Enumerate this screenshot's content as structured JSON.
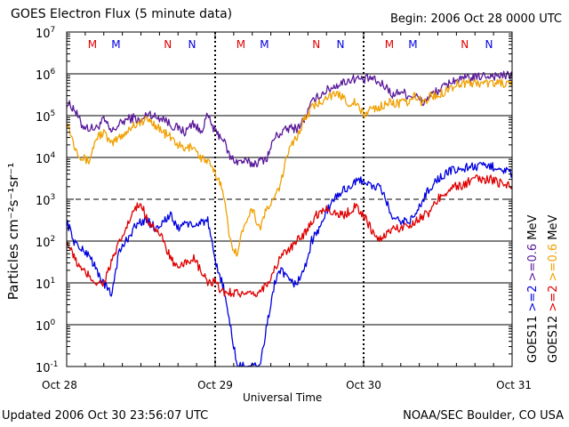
{
  "chart_data": {
    "type": "line",
    "title": "GOES Electron Flux (5 minute data)",
    "begin": "Begin: 2006 Oct 28 0000 UTC",
    "xlabel": "Universal Time",
    "ylabel": "Particles cm⁻²s⁻¹sr⁻¹",
    "yscale": "log",
    "ylim": [
      0.1,
      10000000
    ],
    "x_unit": "days since 2006 Oct 28 0000 UTC",
    "xlim": [
      0,
      3
    ],
    "x_ticks": [
      {
        "value": 0,
        "label": "Oct 28"
      },
      {
        "value": 1,
        "label": "Oct 29"
      },
      {
        "value": 2,
        "label": "Oct 30"
      },
      {
        "value": 3,
        "label": "Oct 31"
      }
    ],
    "y_ticks": [
      {
        "value": 0.1,
        "base": "10",
        "exp": "-1"
      },
      {
        "value": 1,
        "base": "10",
        "exp": "0"
      },
      {
        "value": 10,
        "base": "10",
        "exp": "1"
      },
      {
        "value": 100,
        "base": "10",
        "exp": "2"
      },
      {
        "value": 1000,
        "base": "10",
        "exp": "3"
      },
      {
        "value": 10000,
        "base": "10",
        "exp": "4"
      },
      {
        "value": 100000,
        "base": "10",
        "exp": "5"
      },
      {
        "value": 1000000,
        "base": "10",
        "exp": "6"
      },
      {
        "value": 10000000,
        "base": "10",
        "exp": "7"
      }
    ],
    "threshold_line": 1000,
    "day_dividers": [
      1,
      2
    ],
    "markers": [
      {
        "x": 0.173,
        "label": "M",
        "color": "#e00000"
      },
      {
        "x": 0.332,
        "label": "M",
        "color": "#0000e0"
      },
      {
        "x": 0.681,
        "label": "N",
        "color": "#e00000"
      },
      {
        "x": 0.844,
        "label": "N",
        "color": "#0000e0"
      },
      {
        "x": 1.173,
        "label": "M",
        "color": "#e00000"
      },
      {
        "x": 1.332,
        "label": "M",
        "color": "#0000e0"
      },
      {
        "x": 1.681,
        "label": "N",
        "color": "#e00000"
      },
      {
        "x": 1.844,
        "label": "N",
        "color": "#0000e0"
      },
      {
        "x": 2.173,
        "label": "M",
        "color": "#e00000"
      },
      {
        "x": 2.332,
        "label": "M",
        "color": "#0000e0"
      },
      {
        "x": 2.681,
        "label": "N",
        "color": "#e00000"
      },
      {
        "x": 2.844,
        "label": "N",
        "color": "#0000e0"
      }
    ],
    "legend": [
      {
        "name": "GOES11",
        "color": "#000000",
        "items": [
          {
            "label": ">=2",
            "color": "#0000e0"
          },
          {
            "label": ">=0.6",
            "color": "#5a1a9a"
          },
          {
            "label": "MeV",
            "color": "#000000"
          }
        ]
      },
      {
        "name": "GOES12",
        "color": "#000000",
        "items": [
          {
            "label": ">=2",
            "color": "#e00000"
          },
          {
            "label": ">=0.6",
            "color": "#f0a000"
          },
          {
            "label": "MeV",
            "color": "#000000"
          }
        ]
      }
    ],
    "series": [
      {
        "name": "GOES11 >=0.6 MeV",
        "color": "#5a1a9a",
        "x": [
          0,
          0.05,
          0.1,
          0.15,
          0.2,
          0.25,
          0.3,
          0.35,
          0.4,
          0.45,
          0.5,
          0.55,
          0.6,
          0.65,
          0.7,
          0.75,
          0.8,
          0.85,
          0.9,
          0.95,
          1.0,
          1.05,
          1.1,
          1.15,
          1.2,
          1.25,
          1.3,
          1.35,
          1.4,
          1.45,
          1.5,
          1.55,
          1.6,
          1.65,
          1.7,
          1.75,
          1.8,
          1.85,
          1.9,
          1.95,
          2.0,
          2.05,
          2.1,
          2.15,
          2.2,
          2.25,
          2.3,
          2.35,
          2.4,
          2.45,
          2.5,
          2.55,
          2.6,
          2.65,
          2.7,
          2.75,
          2.8,
          2.85,
          2.9,
          2.95,
          3.0
        ],
        "y": [
          200000,
          150000,
          60000,
          50000,
          50000,
          80000,
          40000,
          60000,
          80000,
          90000,
          70000,
          120000,
          90000,
          90000,
          60000,
          50000,
          40000,
          70000,
          40000,
          100000,
          40000,
          30000,
          10000,
          8000,
          8000,
          7000,
          8000,
          10000,
          30000,
          40000,
          50000,
          50000,
          80000,
          200000,
          300000,
          400000,
          500000,
          600000,
          700000,
          800000,
          700000,
          800000,
          600000,
          500000,
          300000,
          400000,
          300000,
          300000,
          200000,
          300000,
          400000,
          500000,
          700000,
          700000,
          800000,
          800000,
          900000,
          900000,
          900000,
          900000,
          900000
        ]
      },
      {
        "name": "GOES12 >=0.6 MeV",
        "color": "#f0a000",
        "x": [
          0,
          0.05,
          0.1,
          0.15,
          0.2,
          0.25,
          0.3,
          0.35,
          0.4,
          0.45,
          0.5,
          0.55,
          0.6,
          0.65,
          0.7,
          0.75,
          0.8,
          0.85,
          0.9,
          0.95,
          1.0,
          1.05,
          1.1,
          1.15,
          1.2,
          1.25,
          1.3,
          1.35,
          1.4,
          1.45,
          1.5,
          1.55,
          1.6,
          1.65,
          1.7,
          1.75,
          1.8,
          1.85,
          1.9,
          1.95,
          2.0,
          2.05,
          2.1,
          2.15,
          2.2,
          2.25,
          2.3,
          2.35,
          2.4,
          2.45,
          2.5,
          2.55,
          2.6,
          2.65,
          2.7,
          2.75,
          2.8,
          2.85,
          2.9,
          2.95,
          3.0
        ],
        "y": [
          80000,
          20000,
          10000,
          8000,
          30000,
          40000,
          20000,
          30000,
          40000,
          60000,
          70000,
          80000,
          60000,
          40000,
          30000,
          20000,
          15000,
          20000,
          10000,
          8000,
          4000,
          2000,
          100,
          50,
          300,
          600,
          200,
          600,
          1000,
          3000,
          20000,
          30000,
          80000,
          150000,
          200000,
          300000,
          300000,
          300000,
          200000,
          200000,
          100000,
          150000,
          150000,
          200000,
          200000,
          200000,
          200000,
          300000,
          200000,
          300000,
          300000,
          400000,
          500000,
          600000,
          600000,
          600000,
          600000,
          600000,
          600000,
          600000,
          500000
        ]
      },
      {
        "name": "GOES11 >=2 MeV",
        "color": "#0000e0",
        "x": [
          0,
          0.05,
          0.1,
          0.15,
          0.2,
          0.25,
          0.3,
          0.35,
          0.4,
          0.45,
          0.5,
          0.55,
          0.6,
          0.65,
          0.7,
          0.75,
          0.8,
          0.85,
          0.9,
          0.95,
          1.0,
          1.05,
          1.1,
          1.15,
          1.2,
          1.25,
          1.3,
          1.35,
          1.4,
          1.45,
          1.5,
          1.55,
          1.6,
          1.65,
          1.7,
          1.75,
          1.8,
          1.85,
          1.9,
          1.95,
          2.0,
          2.05,
          2.1,
          2.15,
          2.2,
          2.25,
          2.3,
          2.35,
          2.4,
          2.45,
          2.5,
          2.55,
          2.6,
          2.65,
          2.7,
          2.75,
          2.8,
          2.85,
          2.9,
          2.95,
          3.0
        ],
        "y": [
          300,
          100,
          60,
          50,
          20,
          10,
          5,
          50,
          100,
          200,
          300,
          300,
          200,
          300,
          400,
          200,
          300,
          200,
          300,
          300,
          30,
          10,
          1,
          0.1,
          0.1,
          0.1,
          0.1,
          1,
          10,
          20,
          10,
          10,
          20,
          100,
          200,
          500,
          1000,
          1500,
          2000,
          2500,
          3000,
          2000,
          2000,
          1000,
          300,
          300,
          300,
          400,
          1000,
          2000,
          3000,
          4000,
          5000,
          5000,
          6000,
          6000,
          6000,
          6000,
          6000,
          5000,
          4000
        ]
      },
      {
        "name": "GOES12 >=2 MeV",
        "color": "#e00000",
        "x": [
          0,
          0.05,
          0.1,
          0.15,
          0.2,
          0.25,
          0.3,
          0.35,
          0.4,
          0.45,
          0.5,
          0.55,
          0.6,
          0.65,
          0.7,
          0.75,
          0.8,
          0.85,
          0.9,
          0.95,
          1.0,
          1.05,
          1.1,
          1.15,
          1.2,
          1.25,
          1.3,
          1.35,
          1.4,
          1.45,
          1.5,
          1.55,
          1.6,
          1.65,
          1.7,
          1.75,
          1.8,
          1.85,
          1.9,
          1.95,
          2.0,
          2.05,
          2.1,
          2.15,
          2.2,
          2.25,
          2.3,
          2.35,
          2.4,
          2.45,
          2.5,
          2.55,
          2.6,
          2.65,
          2.7,
          2.75,
          2.8,
          2.85,
          2.9,
          2.95,
          3.0
        ],
        "y": [
          100,
          40,
          20,
          15,
          10,
          10,
          30,
          80,
          200,
          500,
          800,
          300,
          200,
          100,
          40,
          20,
          30,
          40,
          20,
          10,
          10,
          6,
          6,
          6,
          5,
          5,
          6,
          10,
          20,
          50,
          60,
          100,
          150,
          300,
          500,
          600,
          500,
          400,
          500,
          700,
          400,
          200,
          100,
          150,
          200,
          200,
          250,
          300,
          400,
          500,
          1000,
          1500,
          2000,
          2000,
          2500,
          3000,
          3000,
          3000,
          2500,
          2500,
          2000
        ]
      }
    ]
  },
  "footer": {
    "updated": "Updated 2006 Oct 30 23:56:07 UTC",
    "source": "NOAA/SEC Boulder, CO USA"
  }
}
